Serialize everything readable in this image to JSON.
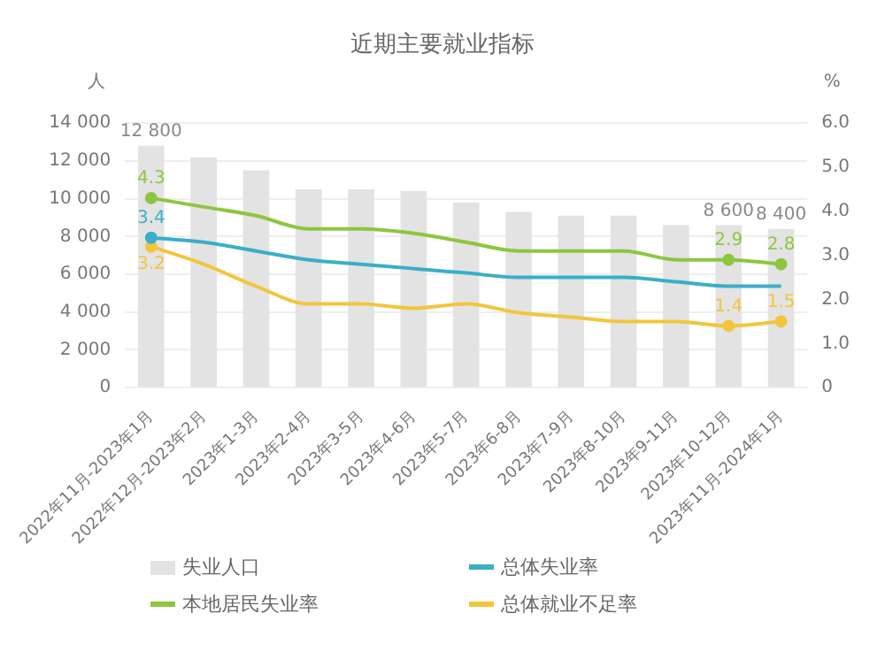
{
  "chart_data": {
    "type": "bar",
    "title": "近期主要就业指标",
    "ylabel": "人",
    "y2label": "%",
    "categories": [
      "2022年11月-2023年1月",
      "2022年12月-2023年2月",
      "2023年1-3月",
      "2023年2-4月",
      "2023年3-5月",
      "2023年4-6月",
      "2023年5-7月",
      "2023年6-8月",
      "2023年7-9月",
      "2023年8-10月",
      "2023年9-11月",
      "2023年10-12月",
      "2023年11月-2024年1月"
    ],
    "series": [
      {
        "name": "失业人口",
        "color": "#e3e3e3",
        "values": [
          12800,
          12200,
          11500,
          10500,
          10500,
          10400,
          9800,
          9300,
          9100,
          9100,
          8600,
          8600,
          8400
        ],
        "value_labels": [
          "12 800",
          null,
          null,
          null,
          null,
          null,
          null,
          null,
          null,
          null,
          null,
          "8 600",
          "8 400"
        ]
      },
      {
        "name": "总体失业率",
        "type": "line",
        "axis": "y2",
        "color": "#3aaec8",
        "values": [
          3.4,
          3.3,
          3.1,
          2.9,
          2.8,
          2.7,
          2.6,
          2.5,
          2.5,
          2.5,
          2.4,
          2.3,
          2.3
        ],
        "value_labels": [
          "3.4",
          null,
          null,
          null,
          null,
          null,
          null,
          null,
          null,
          null,
          null,
          null,
          null
        ]
      },
      {
        "name": "本地居民失业率",
        "type": "line",
        "axis": "y2",
        "color": "#8dc63f",
        "values": [
          4.3,
          4.1,
          3.9,
          3.6,
          3.6,
          3.5,
          3.3,
          3.1,
          3.1,
          3.1,
          2.9,
          2.9,
          2.8
        ],
        "value_labels": [
          "4.3",
          null,
          null,
          null,
          null,
          null,
          null,
          null,
          null,
          null,
          null,
          "2.9",
          "2.8"
        ]
      },
      {
        "name": "总体就业不足率",
        "type": "line",
        "axis": "y2",
        "color": "#f2c53d",
        "values": [
          3.2,
          2.8,
          2.3,
          1.9,
          1.9,
          1.8,
          1.9,
          1.7,
          1.6,
          1.5,
          1.5,
          1.4,
          1.5
        ],
        "value_labels": [
          "3.2",
          null,
          null,
          null,
          null,
          null,
          null,
          null,
          null,
          null,
          null,
          "1.4",
          "1.5"
        ]
      }
    ],
    "ylim": [
      0,
      14000
    ],
    "yticks": [
      0,
      {
        "value": 2000,
        "label": "2 000"
      },
      {
        "value": 4000,
        "label": "4 000"
      },
      {
        "value": 6000,
        "label": "6 000"
      },
      {
        "value": 8000,
        "label": "8 000"
      },
      {
        "value": 10000,
        "label": "10 000"
      },
      {
        "value": 12000,
        "label": "12 000"
      },
      {
        "value": 14000,
        "label": "14 000"
      }
    ],
    "y2lim": [
      0,
      6
    ],
    "y2ticks": [
      0,
      {
        "value": 1,
        "label": "1.0"
      },
      {
        "value": 2,
        "label": "2.0"
      },
      {
        "value": 3,
        "label": "3.0"
      },
      {
        "value": 4,
        "label": "4.0"
      },
      {
        "value": 5,
        "label": "5.0"
      },
      {
        "value": 6,
        "label": "6.0"
      }
    ],
    "grid": "y",
    "legend": "bottom",
    "line_style": "solid"
  }
}
